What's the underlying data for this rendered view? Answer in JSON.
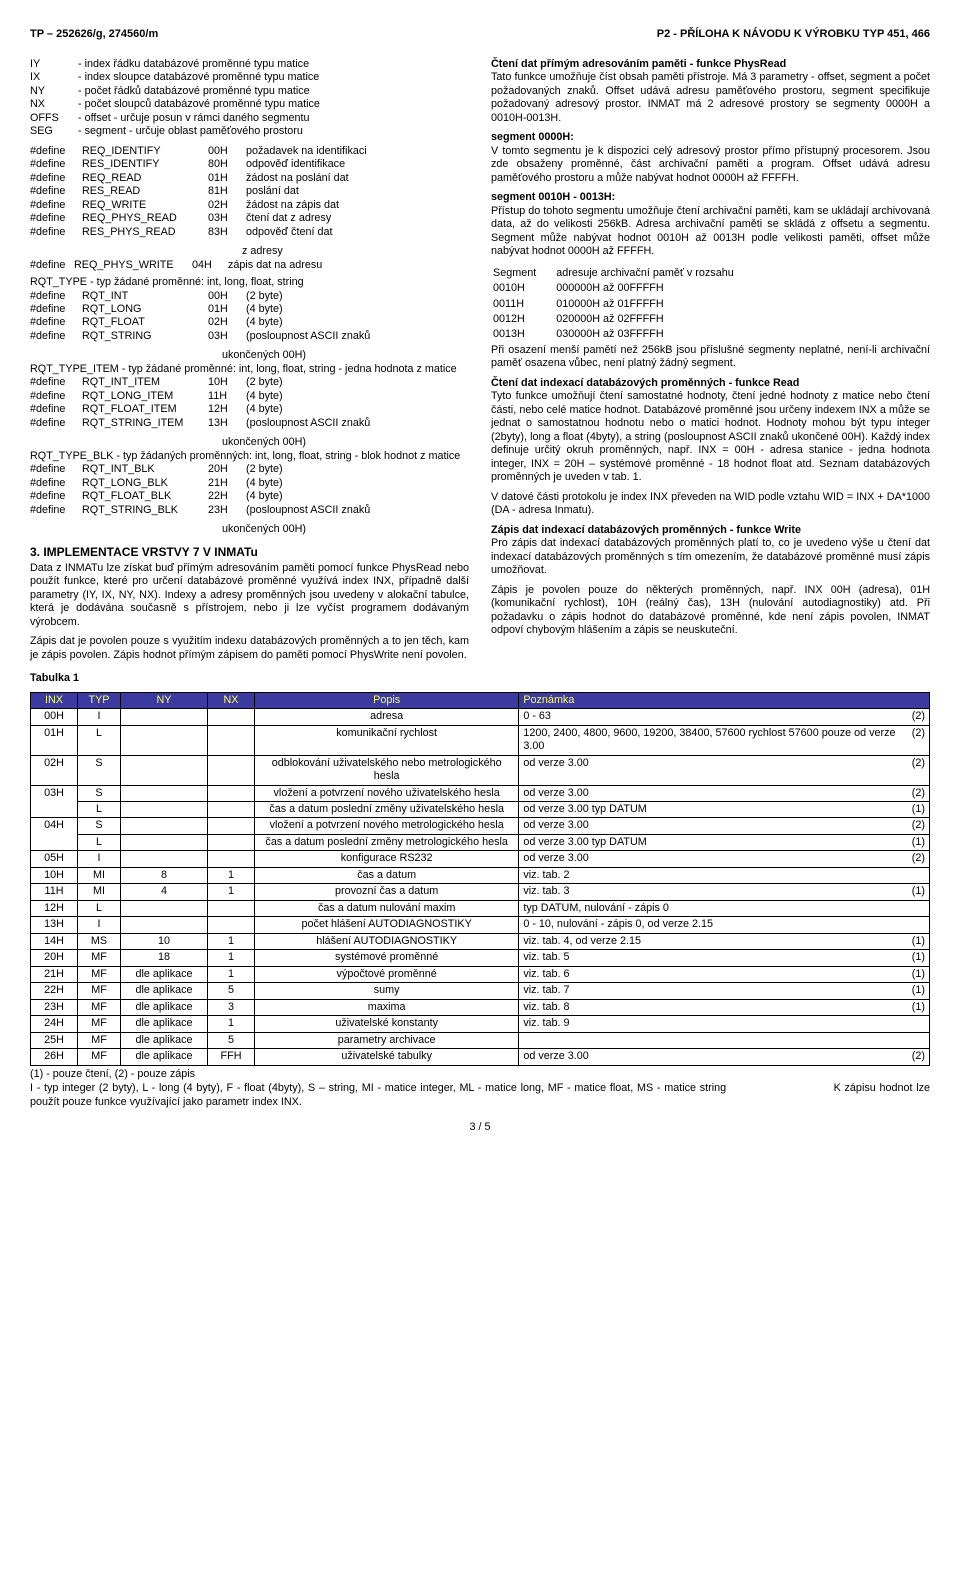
{
  "header": {
    "left": "TP – 252626/g, 274560/m",
    "right": "P2 - PŘÍLOHA K NÁVODU K VÝROBKU   TYP 451, 466"
  },
  "definitions": [
    {
      "sym": "IY",
      "desc": "- index řádku databázové proměnné typu matice"
    },
    {
      "sym": "IX",
      "desc": "- index sloupce databázové proměnné typu matice"
    },
    {
      "sym": "NY",
      "desc": "- počet řádků databázové proměnné typu matice"
    },
    {
      "sym": "NX",
      "desc": "- počet sloupců databázové proměnné typu matice"
    },
    {
      "sym": "OFFS",
      "desc": "- offset - určuje posun v rámci daného segmentu"
    },
    {
      "sym": "SEG",
      "desc": "- segment - určuje oblast paměťového prostoru"
    }
  ],
  "defines1": [
    {
      "name": "REQ_IDENTIFY",
      "val": "00H",
      "desc": "požadavek na identifikaci"
    },
    {
      "name": "RES_IDENTIFY",
      "val": "80H",
      "desc": "odpověď identifikace"
    },
    {
      "name": "REQ_READ",
      "val": "01H",
      "desc": "žádost na poslání dat"
    },
    {
      "name": "RES_READ",
      "val": "81H",
      "desc": "poslání dat"
    },
    {
      "name": "REQ_WRITE",
      "val": "02H",
      "desc": "žádost na zápis dat"
    },
    {
      "name": "REQ_PHYS_READ",
      "val": "03H",
      "desc": "čtení dat z adresy"
    },
    {
      "name": "RES_PHYS_READ",
      "val": "83H",
      "desc": "odpověď čtení dat"
    }
  ],
  "defines1_tail": {
    "extra": "z adresy",
    "last": {
      "name": "REQ_PHYS_WRITE",
      "val": "04H",
      "desc": "zápis dat na adresu"
    }
  },
  "rqt_type_heading": "RQT_TYPE - typ žádané proměnné: int, long, float, string",
  "defines2": [
    {
      "name": "RQT_INT",
      "val": "00H",
      "desc": "(2 byte)"
    },
    {
      "name": "RQT_LONG",
      "val": "01H",
      "desc": "(4 byte)"
    },
    {
      "name": "RQT_FLOAT",
      "val": "02H",
      "desc": "(4 byte)"
    },
    {
      "name": "RQT_STRING",
      "val": "03H",
      "desc": "(posloupnost ASCII znaků"
    }
  ],
  "defines2_tail": "ukončených 00H)",
  "rqt_item_heading": "RQT_TYPE_ITEM - typ žádané proměnné: int, long, float, string - jedna hodnota z matice",
  "defines3": [
    {
      "name": "RQT_INT_ITEM",
      "val": "10H",
      "desc": "(2 byte)"
    },
    {
      "name": "RQT_LONG_ITEM",
      "val": "11H",
      "desc": "(4 byte)"
    },
    {
      "name": "RQT_FLOAT_ITEM",
      "val": "12H",
      "desc": "(4 byte)"
    },
    {
      "name": "RQT_STRING_ITEM",
      "val": "13H",
      "desc": "(posloupnost ASCII znaků"
    }
  ],
  "defines3_tail": "ukončených 00H)",
  "rqt_blk_heading": "RQT_TYPE_BLK - typ žádaných proměnných: int, long, float, string - blok hodnot z matice",
  "defines4": [
    {
      "name": "RQT_INT_BLK",
      "val": "20H",
      "desc": "(2 byte)"
    },
    {
      "name": "RQT_LONG_BLK",
      "val": "21H",
      "desc": "(4 byte)"
    },
    {
      "name": "RQT_FLOAT_BLK",
      "val": "22H",
      "desc": "(4 byte)"
    },
    {
      "name": "RQT_STRING_BLK",
      "val": "23H",
      "desc": "(posloupnost ASCII znaků"
    }
  ],
  "defines4_tail": "ukončených 00H)",
  "section3_title": "3. IMPLEMENTACE VRSTVY 7 V INMATu",
  "section3_p1": "Data z INMATu lze získat buď přímým adresováním paměti pomocí funkce PhysRead nebo použít funkce, které pro určení databázové proměnné využívá index INX, případně další parametry (IY, IX, NY, NX). Indexy a adresy proměnných jsou uvedeny v alokační tabulce, která je dodávána současně s přístrojem, nebo ji lze vyčíst programem dodávaným výrobcem.",
  "section3_p2": "Zápis dat je povolen pouze s využitím indexu databázových proměnných a to jen těch, kam je zápis povolen. Zápis hodnot přímým zápisem do paměti pomocí PhysWrite není povolen.",
  "right": {
    "h1": "Čtení dat přímým adresováním paměti - funkce PhysRead",
    "p1": "Tato funkce umožňuje číst obsah paměti přístroje. Má 3 parametry - offset, segment a počet požadovaných znaků. Offset udává adresu paměťového prostoru, segment specifikuje požadovaný adresový prostor. INMAT má 2 adresové prostory se segmenty 0000H a 0010H-0013H.",
    "seg0": "segment 0000H:",
    "seg0p": "V tomto segmentu je k dispozici celý adresový prostor přímo přístupný procesorem. Jsou zde obsaženy proměnné, část archivační paměti a program. Offset udává adresu paměťového prostoru a může nabývat hodnot 0000H až FFFFH.",
    "seg10": "segment 0010H - 0013H:",
    "seg10p": "Přístup do tohoto segmentu umožňuje čtení archivační paměti, kam se ukládají archivovaná data, až do velikosti 256kB. Adresa archivační paměti se skládá z offsetu a segmentu. Segment může nabývat hodnot 0010H až 0013H podle velikosti paměti, offset může nabývat hodnot 0000H až FFFFH.",
    "seglabel": "Segment",
    "segdesc": "adresuje archivační paměť v rozsahu",
    "segs": [
      {
        "a": "0010H",
        "b": "000000H až 00FFFFH"
      },
      {
        "a": "0011H",
        "b": "010000H až 01FFFFH"
      },
      {
        "a": "0012H",
        "b": "020000H až 02FFFFH"
      },
      {
        "a": "0013H",
        "b": "030000H až 03FFFFH"
      }
    ],
    "seg_after": "Při osazení menší pamětí než 256kB jsou příslušné segmenty neplatné, není-li archivační paměť osazena vůbec, není platný žádný segment.",
    "h2": "Čtení dat indexací databázových proměnných - funkce Read",
    "p2": "Tyto funkce umožňují čtení samostatné hodnoty, čtení jedné hodnoty z matice nebo čtení části, nebo celé matice hodnot. Databázové proměnné jsou určeny indexem INX a může se jednat o samostatnou hodnotu nebo o matici hodnot. Hodnoty mohou být typu integer (2byty), long a float (4byty), a string (posloupnost ASCII znaků ukončené 00H). Každý index definuje určitý okruh proměnných, např. INX = 00H - adresa stanice - jedna hodnota integer, INX = 20H – systémové proměnné - 18 hodnot float atd. Seznam databázových proměnných je uveden v tab. 1.",
    "p2b": "V datové části protokolu je index INX převeden na WID podle vztahu WID = INX + DA*1000 (DA - adresa Inmatu).",
    "h3": "Zápis dat indexací databázových proměnných - funkce Write",
    "p3": "Pro zápis dat indexací databázových proměnných platí to, co je uvedeno výše u čtení dat indexací databázových proměnných s tím omezením, že databázové proměnné musí zápis umožňovat.",
    "p4": "Zápis je povolen pouze do některých proměnných, např. INX 00H (adresa), 01H (komunikační rychlost), 10H (reálný čas), 13H (nulování autodiagnostiky) atd. Při požadavku o zápis hodnot do databázové proměnné, kde není zápis povolen, INMAT odpoví chybovým hlášením a zápis se neuskuteční."
  },
  "table_caption": "Tabulka 1",
  "table_headers": [
    "INX",
    "TYP",
    "NY",
    "NX",
    "Popis",
    "Poznámka"
  ],
  "rows": [
    {
      "inx": "00H",
      "typ": "I",
      "ny": "",
      "nx": "",
      "popis": "adresa",
      "poz": "0 - 63",
      "flag": "(2)",
      "rowspan": 1
    },
    {
      "inx": "01H",
      "typ": "L",
      "ny": "",
      "nx": "",
      "popis": "komunikační rychlost",
      "poz": "1200, 2400, 4800, 9600, 19200, 38400, 57600 rychlost 57600 pouze od verze 3.00",
      "flag": "(2)"
    },
    {
      "inx": "02H",
      "typ": "S",
      "ny": "",
      "nx": "",
      "popis": "odblokování uživatelského nebo metrologického hesla",
      "poz": "od verze 3.00",
      "flag": "(2)"
    },
    {
      "inx": "03H",
      "typ": "S",
      "ny": "",
      "nx": "",
      "popis": "vložení a potvrzení nového uživatelského hesla",
      "poz": "od verze 3.00",
      "flag": "(2)",
      "merge": "top"
    },
    {
      "inx": "",
      "typ": "L",
      "ny": "",
      "nx": "",
      "popis": "čas a datum poslední změny uživatelského hesla",
      "poz": "od verze 3.00 typ DATUM",
      "flag": "(1)",
      "merge": "bottom"
    },
    {
      "inx": "04H",
      "typ": "S",
      "ny": "",
      "nx": "",
      "popis": "vložení a potvrzení nového metrologického hesla",
      "poz": "od verze 3.00",
      "flag": "(2)",
      "merge": "top"
    },
    {
      "inx": "",
      "typ": "L",
      "ny": "",
      "nx": "",
      "popis": "čas a datum poslední změny metrologického hesla",
      "poz": "od verze 3.00 typ DATUM",
      "flag": "(1)",
      "merge": "bottom"
    },
    {
      "inx": "05H",
      "typ": "I",
      "ny": "",
      "nx": "",
      "popis": "konfigurace RS232",
      "poz": "od verze 3.00",
      "flag": "(2)"
    },
    {
      "inx": "10H",
      "typ": "MI",
      "ny": "8",
      "nx": "1",
      "popis": "čas a datum",
      "poz": "viz. tab. 2",
      "flag": ""
    },
    {
      "inx": "11H",
      "typ": "MI",
      "ny": "4",
      "nx": "1",
      "popis": "provozní čas a datum",
      "poz": "viz. tab. 3",
      "flag": "(1)"
    },
    {
      "inx": "12H",
      "typ": "L",
      "ny": "",
      "nx": "",
      "popis": "čas a datum nulování maxim",
      "poz": "typ DATUM, nulování - zápis 0",
      "flag": ""
    },
    {
      "inx": "13H",
      "typ": "I",
      "ny": "",
      "nx": "",
      "popis": "počet hlášení AUTODIAGNOSTIKY",
      "poz": "0 - 10, nulování - zápis 0, od verze 2.15",
      "flag": ""
    },
    {
      "inx": "14H",
      "typ": "MS",
      "ny": "10",
      "nx": "1",
      "popis": "hlášení AUTODIAGNOSTIKY",
      "poz": "viz. tab. 4, od verze 2.15",
      "flag": "(1)"
    },
    {
      "inx": "20H",
      "typ": "MF",
      "ny": "18",
      "nx": "1",
      "popis": "systémové proměnné",
      "poz": "viz. tab. 5",
      "flag": "(1)"
    },
    {
      "inx": "21H",
      "typ": "MF",
      "ny": "dle aplikace",
      "nx": "1",
      "popis": "výpočtové proměnné",
      "poz": "viz. tab. 6",
      "flag": "(1)"
    },
    {
      "inx": "22H",
      "typ": "MF",
      "ny": "dle aplikace",
      "nx": "5",
      "popis": "sumy",
      "poz": "viz. tab. 7",
      "flag": "(1)"
    },
    {
      "inx": "23H",
      "typ": "MF",
      "ny": "dle aplikace",
      "nx": "3",
      "popis": "maxima",
      "poz": "viz. tab. 8",
      "flag": "(1)"
    },
    {
      "inx": "24H",
      "typ": "MF",
      "ny": "dle aplikace",
      "nx": "1",
      "popis": "uživatelské konstanty",
      "poz": "viz. tab. 9",
      "flag": ""
    },
    {
      "inx": "25H",
      "typ": "MF",
      "ny": "dle aplikace",
      "nx": "5",
      "popis": "parametry archivace",
      "poz": "",
      "flag": ""
    },
    {
      "inx": "26H",
      "typ": "MF",
      "ny": "dle aplikace",
      "nx": "FFH",
      "popis": "uživatelské tabulky",
      "poz": "od verze 3.00",
      "flag": "(2)"
    }
  ],
  "legend1": "(1) - pouze čtení,   (2) - pouze zápis",
  "legend2": "I - typ integer (2 byty), L - long (4 byty), F - float (4byty), S – string, MI - matice integer, ML - matice long, MF - matice float, MS - matice string",
  "legend3": "K zápisu hodnot lze použít pouze funkce využívající jako parametr index INX.",
  "page": "3 / 5",
  "colors": {
    "header_bg": "#3a3aa0",
    "header_fg": "#ffff66",
    "border": "#000000"
  }
}
